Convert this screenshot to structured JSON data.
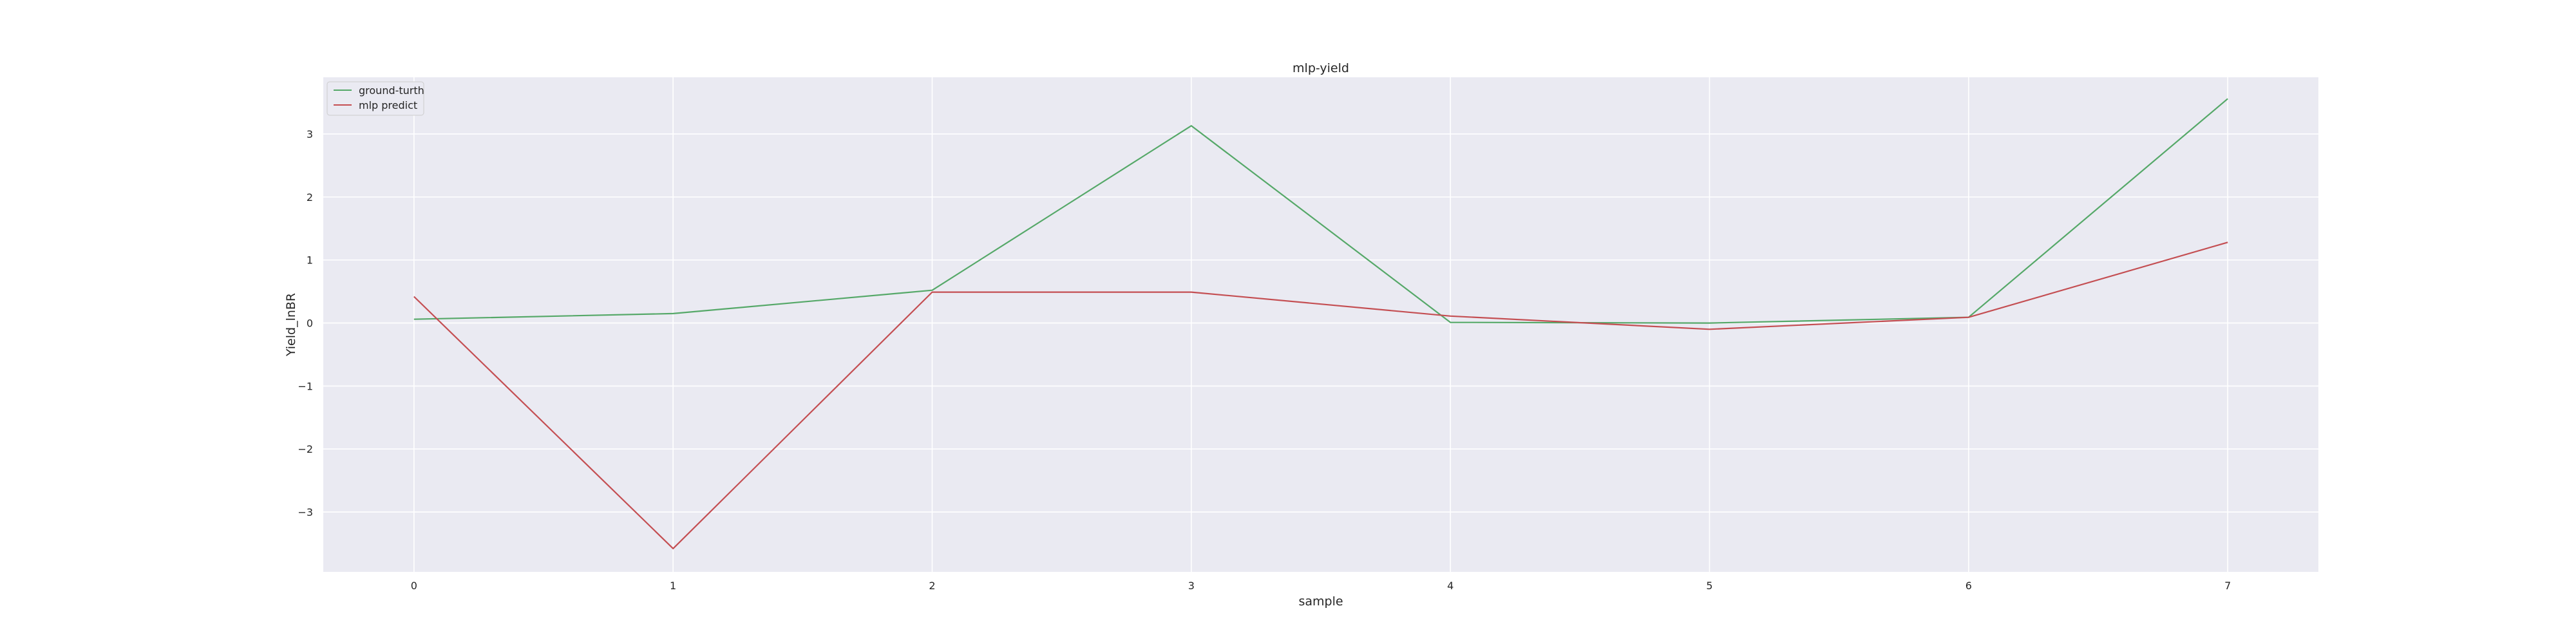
{
  "chart_data": {
    "type": "line",
    "title": "mlp-yield",
    "xlabel": "sample",
    "ylabel": "Yield_lnBR",
    "x": [
      0,
      1,
      2,
      3,
      4,
      5,
      6,
      7
    ],
    "xlim": [
      -0.35,
      7.35
    ],
    "ylim": [
      -3.95,
      3.9
    ],
    "xticks": [
      0,
      1,
      2,
      3,
      4,
      5,
      6,
      7
    ],
    "yticks": [
      -3,
      -2,
      -1,
      0,
      1,
      2,
      3
    ],
    "ytick_labels": [
      "−3",
      "−2",
      "−1",
      "0",
      "1",
      "2",
      "3"
    ],
    "grid": true,
    "legend_position": "upper-left",
    "series": [
      {
        "name": "ground-turth",
        "color": "#55a868",
        "values": [
          0.06,
          0.15,
          0.52,
          3.13,
          0.01,
          0.0,
          0.09,
          3.56
        ]
      },
      {
        "name": "mlp predict",
        "color": "#c44e52",
        "values": [
          0.42,
          -3.58,
          0.49,
          0.49,
          0.11,
          -0.1,
          0.09,
          1.28
        ]
      }
    ]
  }
}
